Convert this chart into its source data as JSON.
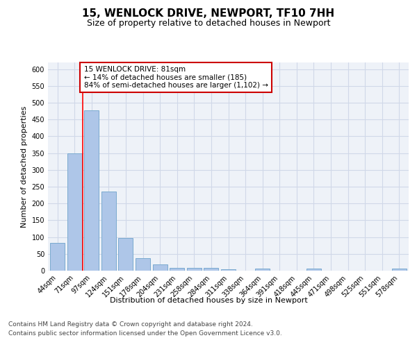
{
  "title": "15, WENLOCK DRIVE, NEWPORT, TF10 7HH",
  "subtitle": "Size of property relative to detached houses in Newport",
  "xlabel": "Distribution of detached houses by size in Newport",
  "ylabel": "Number of detached properties",
  "categories": [
    "44sqm",
    "71sqm",
    "97sqm",
    "124sqm",
    "151sqm",
    "178sqm",
    "204sqm",
    "231sqm",
    "258sqm",
    "284sqm",
    "311sqm",
    "338sqm",
    "364sqm",
    "391sqm",
    "418sqm",
    "445sqm",
    "471sqm",
    "498sqm",
    "525sqm",
    "551sqm",
    "578sqm"
  ],
  "values": [
    82,
    350,
    478,
    235,
    97,
    38,
    18,
    8,
    9,
    9,
    4,
    0,
    7,
    0,
    0,
    6,
    0,
    0,
    0,
    0,
    6
  ],
  "bar_color": "#aec6e8",
  "bar_edge_color": "#7aaad0",
  "grid_color": "#d0d8e8",
  "background_color": "#eef2f8",
  "red_line_x": 1.5,
  "annotation_text": "15 WENLOCK DRIVE: 81sqm\n← 14% of detached houses are smaller (185)\n84% of semi-detached houses are larger (1,102) →",
  "annotation_box_color": "#ffffff",
  "annotation_box_edge_color": "#cc0000",
  "footer_line1": "Contains HM Land Registry data © Crown copyright and database right 2024.",
  "footer_line2": "Contains public sector information licensed under the Open Government Licence v3.0.",
  "ylim": [
    0,
    620
  ],
  "yticks": [
    0,
    50,
    100,
    150,
    200,
    250,
    300,
    350,
    400,
    450,
    500,
    550,
    600
  ],
  "title_fontsize": 11,
  "subtitle_fontsize": 9,
  "axis_label_fontsize": 8,
  "tick_fontsize": 7,
  "footer_fontsize": 6.5,
  "annotation_fontsize": 7.5
}
